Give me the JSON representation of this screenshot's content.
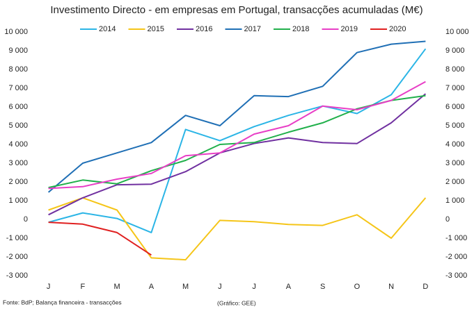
{
  "chart_data": {
    "type": "line",
    "title": "Investimento Directo - em empresas em Portugal, transacções acumuladas (M€)",
    "categories": [
      "J",
      "F",
      "M",
      "A",
      "M",
      "J",
      "J",
      "A",
      "S",
      "O",
      "N",
      "D"
    ],
    "series": [
      {
        "name": "2014",
        "color": "#2bb5e6",
        "values": [
          -150,
          350,
          50,
          -700,
          4800,
          4200,
          4950,
          5550,
          6050,
          5650,
          6650,
          9100
        ]
      },
      {
        "name": "2015",
        "color": "#f5c518",
        "values": [
          500,
          1150,
          500,
          -2050,
          -2150,
          -50,
          -120,
          -270,
          -320,
          250,
          -1000,
          1150
        ]
      },
      {
        "name": "2016",
        "color": "#7030a0",
        "values": [
          250,
          1150,
          1850,
          1880,
          2550,
          3550,
          4050,
          4350,
          4100,
          4050,
          5150,
          6700
        ]
      },
      {
        "name": "2017",
        "color": "#1f6fb5",
        "values": [
          1450,
          3000,
          3550,
          4100,
          5550,
          5000,
          6600,
          6550,
          7100,
          8900,
          9350,
          9500
        ]
      },
      {
        "name": "2018",
        "color": "#21b04b",
        "values": [
          1700,
          2100,
          1900,
          2600,
          3150,
          4000,
          4100,
          4650,
          5150,
          5900,
          6350,
          6600
        ]
      },
      {
        "name": "2019",
        "color": "#e83ec6",
        "values": [
          1650,
          1750,
          2150,
          2450,
          3400,
          3550,
          4550,
          5000,
          6050,
          5850,
          6350,
          7350
        ]
      },
      {
        "name": "2020",
        "color": "#e02020",
        "values": [
          -150,
          -250,
          -700,
          -1900,
          null,
          null,
          null,
          null,
          null,
          null,
          null,
          null
        ]
      }
    ],
    "ylim": [
      -3000,
      10000
    ],
    "yticks": [
      {
        "value": -3000,
        "label": "-3 000"
      },
      {
        "value": -2000,
        "label": "-2 000"
      },
      {
        "value": -1000,
        "label": "-1 000"
      },
      0,
      {
        "value": 1000,
        "label": "1 000"
      },
      {
        "value": 2000,
        "label": "2 000"
      },
      {
        "value": 3000,
        "label": "3 000"
      },
      {
        "value": 4000,
        "label": "4 000"
      },
      {
        "value": 5000,
        "label": "5 000"
      },
      {
        "value": 6000,
        "label": "6 000"
      },
      {
        "value": 7000,
        "label": "7 000"
      },
      {
        "value": 8000,
        "label": "8 000"
      },
      {
        "value": 9000,
        "label": "9 000"
      },
      {
        "value": 10000,
        "label": "10 000"
      }
    ],
    "y2lim": [
      -3000,
      10000
    ],
    "y2ticks": [
      {
        "value": -3000,
        "label": "-3 000"
      },
      {
        "value": -2000,
        "label": "-2 000"
      },
      {
        "value": -1000,
        "label": "-1 000"
      },
      0,
      {
        "value": 1000,
        "label": "1 000"
      },
      {
        "value": 2000,
        "label": "2 000"
      },
      {
        "value": 3000,
        "label": "3 000"
      },
      {
        "value": 4000,
        "label": "4 000"
      },
      {
        "value": 5000,
        "label": "5 000"
      },
      {
        "value": 6000,
        "label": "6 000"
      },
      {
        "value": 7000,
        "label": "7 000"
      },
      {
        "value": 8000,
        "label": "8 000"
      },
      {
        "value": 9000,
        "label": "9 000"
      },
      {
        "value": 10000,
        "label": "10 000"
      }
    ],
    "legend": "top",
    "source": "Fonte: BdP; Balança financeira - transacções",
    "credit": "(Gráfico: GEE)"
  }
}
